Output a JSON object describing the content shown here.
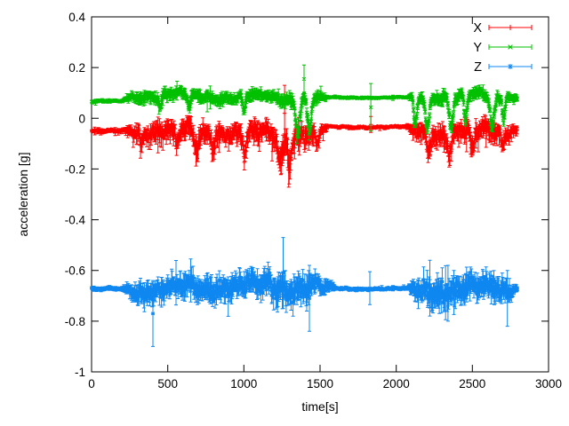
{
  "figure": {
    "background": "#ffffff",
    "border_color": "#000000",
    "text_color": "#000000"
  },
  "chart_data": {
    "type": "scatter",
    "style": "errorbars",
    "title": "",
    "xlabel": "time[s]",
    "ylabel": "acceleration [g]",
    "xlim": [
      0,
      3000
    ],
    "ylim": [
      -1,
      0.4
    ],
    "grid": false,
    "legend_position": "top-right-inside",
    "xticks": {
      "values": [
        0,
        500,
        1000,
        1500,
        2000,
        2500,
        3000
      ],
      "labels": [
        "0",
        "500",
        "1000",
        "1500",
        "2000",
        "2500",
        "3000"
      ]
    },
    "yticks": {
      "values": [
        0.4,
        0.2,
        0,
        -0.2,
        -0.4,
        -0.6,
        -0.8,
        -1
      ],
      "labels": [
        "0.4",
        "0.2",
        "0",
        "-0.2",
        "-0.4",
        "-0.6",
        "-0.8",
        "-1"
      ]
    },
    "t_end": 2795,
    "series": [
      {
        "name": "X",
        "color": "#ff0000",
        "marker": "plus",
        "quiet_level": -0.05,
        "active_level": -0.047,
        "lo_bias": 1.4,
        "hi_bias": 0.75,
        "down_skew": 1.35,
        "envelope": [
          [
            0,
            -0.05,
            0.004,
            0.007
          ],
          [
            200,
            -0.05,
            0.004,
            0.007
          ],
          [
            235,
            -0.047,
            0.012,
            0.016
          ],
          [
            300,
            -0.046,
            0.022,
            0.03
          ],
          [
            500,
            -0.048,
            0.024,
            0.034
          ],
          [
            700,
            -0.055,
            0.028,
            0.04
          ],
          [
            900,
            -0.046,
            0.022,
            0.03
          ],
          [
            1010,
            -0.055,
            0.028,
            0.042
          ],
          [
            1150,
            -0.046,
            0.022,
            0.032
          ],
          [
            1260,
            -0.062,
            0.032,
            0.05
          ],
          [
            1330,
            -0.052,
            0.026,
            0.038
          ],
          [
            1450,
            -0.046,
            0.022,
            0.032
          ],
          [
            1520,
            -0.04,
            0.01,
            0.014
          ],
          [
            1560,
            -0.033,
            0.003,
            0.005
          ],
          [
            2070,
            -0.033,
            0.003,
            0.005
          ],
          [
            2105,
            -0.045,
            0.018,
            0.026
          ],
          [
            2250,
            -0.055,
            0.026,
            0.038
          ],
          [
            2400,
            -0.05,
            0.024,
            0.034
          ],
          [
            2550,
            -0.055,
            0.027,
            0.04
          ],
          [
            2700,
            -0.047,
            0.02,
            0.03
          ],
          [
            2795,
            -0.04,
            0.01,
            0.016
          ]
        ],
        "dips": [
          [
            330,
            10,
            0.05
          ],
          [
            560,
            10,
            0.065
          ],
          [
            690,
            12,
            0.075
          ],
          [
            800,
            10,
            0.055
          ],
          [
            1005,
            12,
            0.085
          ],
          [
            1240,
            14,
            0.095
          ],
          [
            1300,
            10,
            0.09
          ],
          [
            1480,
            10,
            0.06
          ],
          [
            2210,
            10,
            0.065
          ],
          [
            2350,
            12,
            0.075
          ],
          [
            2500,
            12,
            0.085
          ],
          [
            2700,
            10,
            0.065
          ]
        ],
        "spikes": [
          [
            1267,
            -0.09,
            0.13
          ],
          [
            1833,
            -0.056,
            0.007
          ]
        ]
      },
      {
        "name": "Y",
        "color": "#00c000",
        "marker": "cross",
        "quiet_level": 0.066,
        "active_level": 0.085,
        "lo_bias": 1.0,
        "hi_bias": 1.0,
        "down_skew": 1.0,
        "envelope": [
          [
            0,
            0.066,
            0.004,
            0.006
          ],
          [
            195,
            0.066,
            0.004,
            0.006
          ],
          [
            230,
            0.08,
            0.01,
            0.012
          ],
          [
            300,
            0.086,
            0.016,
            0.02
          ],
          [
            600,
            0.086,
            0.018,
            0.022
          ],
          [
            900,
            0.081,
            0.018,
            0.022
          ],
          [
            1150,
            0.086,
            0.016,
            0.02
          ],
          [
            1340,
            0.08,
            0.022,
            0.026
          ],
          [
            1470,
            0.084,
            0.018,
            0.022
          ],
          [
            1520,
            0.08,
            0.01,
            0.012
          ],
          [
            1560,
            0.082,
            0.003,
            0.005
          ],
          [
            2070,
            0.082,
            0.003,
            0.005
          ],
          [
            2110,
            0.082,
            0.016,
            0.02
          ],
          [
            2320,
            0.086,
            0.018,
            0.022
          ],
          [
            2500,
            0.086,
            0.018,
            0.022
          ],
          [
            2700,
            0.084,
            0.018,
            0.022
          ],
          [
            2795,
            0.082,
            0.008,
            0.012
          ]
        ],
        "dips": [
          [
            450,
            8,
            0.05
          ],
          [
            640,
            8,
            0.05
          ],
          [
            1000,
            8,
            0.06
          ],
          [
            1355,
            12,
            0.125
          ],
          [
            1430,
            12,
            0.125
          ],
          [
            2125,
            10,
            0.115
          ],
          [
            2205,
            12,
            0.125
          ],
          [
            2360,
            12,
            0.125
          ],
          [
            2455,
            10,
            0.105
          ],
          [
            2630,
            14,
            0.125
          ],
          [
            2705,
            8,
            0.085
          ]
        ],
        "spikes": [
          [
            1395,
            0.1,
            0.21
          ],
          [
            1833,
            -0.05,
            0.137
          ]
        ]
      },
      {
        "name": "Z",
        "color": "#0e87f0",
        "marker": "star",
        "quiet_level": -0.673,
        "active_level": -0.67,
        "lo_bias": 1.0,
        "hi_bias": 1.0,
        "down_skew": 1.0,
        "envelope": [
          [
            0,
            -0.673,
            0.004,
            0.008
          ],
          [
            195,
            -0.673,
            0.004,
            0.008
          ],
          [
            235,
            -0.672,
            0.015,
            0.02
          ],
          [
            300,
            -0.671,
            0.03,
            0.04
          ],
          [
            420,
            -0.67,
            0.032,
            0.042
          ],
          [
            600,
            -0.672,
            0.034,
            0.044
          ],
          [
            800,
            -0.664,
            0.04,
            0.05
          ],
          [
            900,
            -0.669,
            0.037,
            0.047
          ],
          [
            1000,
            -0.672,
            0.034,
            0.044
          ],
          [
            1200,
            -0.667,
            0.042,
            0.054
          ],
          [
            1310,
            -0.669,
            0.042,
            0.054
          ],
          [
            1450,
            -0.672,
            0.034,
            0.044
          ],
          [
            1560,
            -0.672,
            0.018,
            0.025
          ],
          [
            1615,
            -0.672,
            0.004,
            0.006
          ],
          [
            2075,
            -0.672,
            0.004,
            0.006
          ],
          [
            2115,
            -0.67,
            0.028,
            0.038
          ],
          [
            2250,
            -0.664,
            0.042,
            0.054
          ],
          [
            2420,
            -0.669,
            0.04,
            0.05
          ],
          [
            2550,
            -0.667,
            0.034,
            0.044
          ],
          [
            2680,
            -0.669,
            0.037,
            0.047
          ],
          [
            2755,
            -0.67,
            0.018,
            0.026
          ],
          [
            2795,
            -0.67,
            0.01,
            0.014
          ]
        ],
        "dips": [],
        "spikes": [
          [
            403,
            -0.9,
            -0.64
          ],
          [
            1258,
            -0.75,
            -0.47
          ],
          [
            1430,
            -0.84,
            -0.58
          ],
          [
            1827,
            -0.735,
            -0.605
          ],
          [
            2221,
            -0.78,
            -0.56
          ],
          [
            2340,
            -0.8,
            -0.58
          ],
          [
            2730,
            -0.82,
            -0.6
          ]
        ]
      }
    ]
  },
  "legend": {
    "entries": [
      {
        "label": "X",
        "marker": "plus-errorbar-icon"
      },
      {
        "label": "Y",
        "marker": "cross-errorbar-icon"
      },
      {
        "label": "Z",
        "marker": "star-errorbar-icon"
      }
    ]
  },
  "gen": {
    "seed": 7,
    "step_s": 3.2
  }
}
